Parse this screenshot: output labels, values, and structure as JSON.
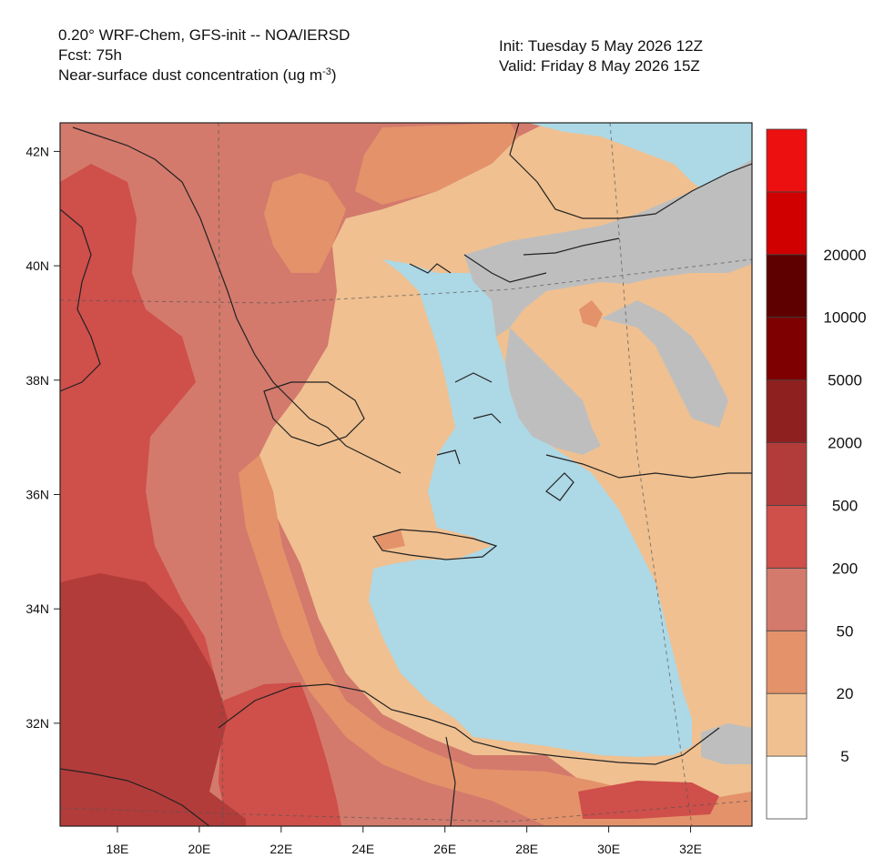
{
  "header": {
    "model_line": "0.20° WRF-Chem, GFS-init -- NOA/IERSD",
    "forecast_line": "Fcst: 75h",
    "variable_line_prefix": "Near-surface dust concentration (ug m",
    "variable_line_exp": "-3",
    "variable_line_suffix": ")",
    "init_line": "Init: Tuesday 5 May 2026  12Z",
    "valid_line": "Valid: Friday 8 May 2026  15Z"
  },
  "map": {
    "lon_range": [
      16.6,
      33.5
    ],
    "lat_range": [
      30.2,
      42.5
    ],
    "lon_ticks": [
      {
        "value": 18,
        "label": "18E"
      },
      {
        "value": 20,
        "label": "20E"
      },
      {
        "value": 22,
        "label": "22E"
      },
      {
        "value": 24,
        "label": "24E"
      },
      {
        "value": 26,
        "label": "26E"
      },
      {
        "value": 28,
        "label": "28E"
      },
      {
        "value": 30,
        "label": "30E"
      },
      {
        "value": 32,
        "label": "32E"
      }
    ],
    "lat_ticks": [
      {
        "value": 42,
        "label": "42N"
      },
      {
        "value": 40,
        "label": "40N"
      },
      {
        "value": 38,
        "label": "38N"
      },
      {
        "value": 36,
        "label": "36N"
      },
      {
        "value": 34,
        "label": "34N"
      },
      {
        "value": 32,
        "label": "32N"
      }
    ],
    "colors": {
      "sea": "#add8e6",
      "gray": "#bebebe",
      "lvl5": "#f0c090",
      "lvl20": "#e4926a",
      "lvl50": "#d37a6c",
      "lvl200": "#cf4f4a",
      "lvl500": "#b23c3a",
      "coast": "#222222"
    }
  },
  "legend": {
    "bins": [
      {
        "color": "#ffffff"
      },
      {
        "color": "#f0c090"
      },
      {
        "color": "#e4926a"
      },
      {
        "color": "#d37a6c"
      },
      {
        "color": "#cf4f4a"
      },
      {
        "color": "#b23c3a"
      },
      {
        "color": "#8f2020"
      },
      {
        "color": "#7e0000"
      },
      {
        "color": "#5e0000"
      },
      {
        "color": "#d00000"
      },
      {
        "color": "#ec1010"
      }
    ],
    "labels": [
      "5",
      "20",
      "50",
      "200",
      "500",
      "2000",
      "5000",
      "10000",
      "20000"
    ]
  }
}
